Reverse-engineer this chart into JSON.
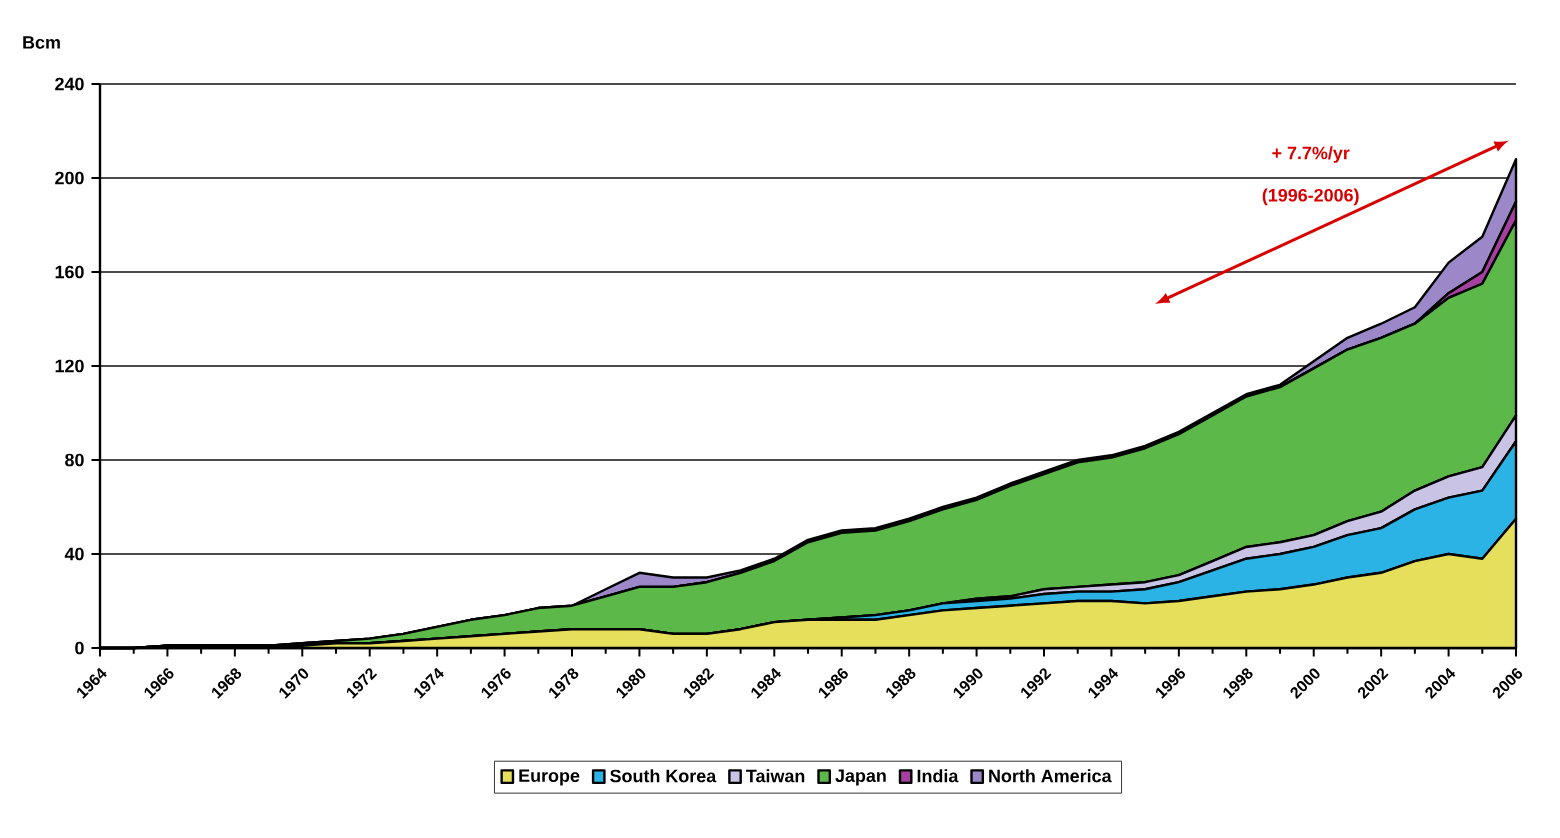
{
  "chart_data": {
    "type": "area",
    "stacked": true,
    "ylabel": "Bcm",
    "x": [
      1964,
      1965,
      1966,
      1967,
      1968,
      1969,
      1970,
      1971,
      1972,
      1973,
      1974,
      1975,
      1976,
      1977,
      1978,
      1979,
      1980,
      1981,
      1982,
      1983,
      1984,
      1985,
      1986,
      1987,
      1988,
      1989,
      1990,
      1991,
      1992,
      1993,
      1994,
      1995,
      1996,
      1997,
      1998,
      1999,
      2000,
      2001,
      2002,
      2003,
      2004,
      2005,
      2006
    ],
    "series": [
      {
        "name": "Europe",
        "color": "#e6df5c",
        "values": [
          0,
          0,
          1,
          1,
          1,
          1,
          1,
          2,
          2,
          3,
          4,
          5,
          6,
          7,
          8,
          8,
          8,
          6,
          6,
          8,
          11,
          12,
          12,
          12,
          14,
          16,
          17,
          18,
          19,
          20,
          20,
          19,
          20,
          22,
          24,
          25,
          27,
          30,
          32,
          37,
          40,
          38,
          55
        ]
      },
      {
        "name": "South Korea",
        "color": "#2bb3e6",
        "values": [
          0,
          0,
          0,
          0,
          0,
          0,
          0,
          0,
          0,
          0,
          0,
          0,
          0,
          0,
          0,
          0,
          0,
          0,
          0,
          0,
          0,
          0,
          1,
          2,
          2,
          3,
          3,
          3,
          4,
          4,
          4,
          6,
          8,
          11,
          14,
          15,
          16,
          18,
          19,
          22,
          24,
          29,
          33
        ]
      },
      {
        "name": "Taiwan",
        "color": "#c9c4e6",
        "values": [
          0,
          0,
          0,
          0,
          0,
          0,
          0,
          0,
          0,
          0,
          0,
          0,
          0,
          0,
          0,
          0,
          0,
          0,
          0,
          0,
          0,
          0,
          0,
          0,
          0,
          0,
          1,
          1,
          2,
          2,
          3,
          3,
          3,
          4,
          5,
          5,
          5,
          6,
          7,
          8,
          9,
          10,
          11
        ]
      },
      {
        "name": "Japan",
        "color": "#5db84a",
        "values": [
          0,
          0,
          0,
          0,
          0,
          0,
          1,
          1,
          2,
          3,
          5,
          7,
          8,
          10,
          10,
          14,
          18,
          20,
          22,
          24,
          26,
          33,
          36,
          36,
          38,
          40,
          42,
          47,
          49,
          53,
          54,
          57,
          60,
          62,
          64,
          66,
          71,
          73,
          74,
          71,
          76,
          78,
          83
        ]
      },
      {
        "name": "India",
        "color": "#a53fa0",
        "values": [
          0,
          0,
          0,
          0,
          0,
          0,
          0,
          0,
          0,
          0,
          0,
          0,
          0,
          0,
          0,
          0,
          0,
          0,
          0,
          0,
          0,
          0,
          0,
          0,
          0,
          0,
          0,
          0,
          0,
          0,
          0,
          0,
          0,
          0,
          0,
          0,
          0,
          0,
          0,
          0,
          2,
          5,
          8
        ]
      },
      {
        "name": "North America",
        "color": "#9c88c9",
        "values": [
          0,
          0,
          0,
          0,
          0,
          0,
          0,
          0,
          0,
          0,
          0,
          0,
          0,
          0,
          0,
          3,
          6,
          4,
          2,
          1,
          1,
          1,
          1,
          1,
          1,
          1,
          1,
          1,
          1,
          1,
          1,
          1,
          1,
          1,
          1,
          1,
          3,
          5,
          6,
          7,
          13,
          15,
          18
        ]
      }
    ],
    "xlim": [
      1964,
      2006
    ],
    "xticks": [
      1964,
      1966,
      1968,
      1970,
      1972,
      1974,
      1976,
      1978,
      1980,
      1982,
      1984,
      1986,
      1988,
      1990,
      1992,
      1994,
      1996,
      1998,
      2000,
      2002,
      2004,
      2006
    ],
    "ylim": [
      0,
      240
    ],
    "yticks": [
      0,
      40,
      80,
      120,
      160,
      200,
      240
    ],
    "grid": "y",
    "legend": "bottom",
    "annotations": [
      "+ 7.7%/yr",
      "(1996-2006)"
    ]
  }
}
